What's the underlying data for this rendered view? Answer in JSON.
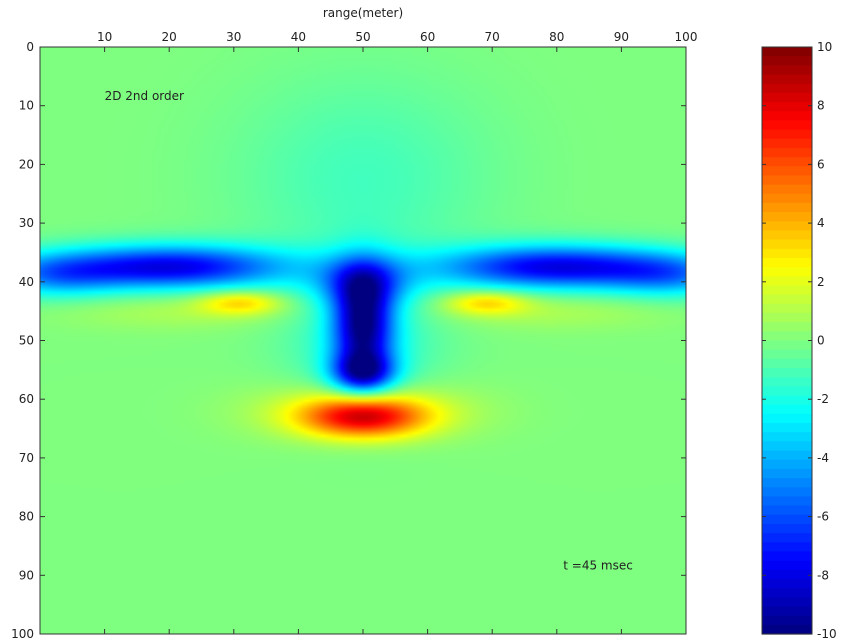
{
  "chart_data": {
    "type": "heatmap",
    "title": "",
    "xlabel": "range(meter)",
    "ylabel": "",
    "xlim": [
      0,
      100
    ],
    "ylim": [
      0,
      100
    ],
    "y_reversed": true,
    "x_axis_position": "top",
    "x_ticks": [
      10,
      20,
      30,
      40,
      50,
      60,
      70,
      80,
      90,
      100
    ],
    "y_ticks": [
      0,
      10,
      20,
      30,
      40,
      50,
      60,
      70,
      80,
      90,
      100
    ],
    "grid": false,
    "colormap": "jet",
    "clim": [
      -10,
      10
    ],
    "colorbar_ticks": [
      10,
      8,
      6,
      4,
      2,
      0,
      -2,
      -4,
      -6,
      -8,
      -10
    ],
    "annotations": [
      {
        "text": "2D 2nd order",
        "x": 10,
        "y": 9
      },
      {
        "text": "t =45 msec",
        "x": 81,
        "y": 89
      }
    ],
    "features": [
      {
        "kind": "gaussian",
        "x": 20,
        "y": 37.5,
        "sx": 13,
        "sy": 2.6,
        "value": -8.0
      },
      {
        "kind": "gaussian",
        "x": 80,
        "y": 37.5,
        "sx": 13,
        "sy": 2.6,
        "value": -8.0
      },
      {
        "kind": "gaussian",
        "x": 2,
        "y": 39,
        "sx": 7,
        "sy": 2.6,
        "value": -3.5
      },
      {
        "kind": "gaussian",
        "x": 98,
        "y": 39,
        "sx": 7,
        "sy": 2.6,
        "value": -3.5
      },
      {
        "kind": "gaussian",
        "x": 50,
        "y": 40,
        "sx": 5,
        "sy": 3,
        "value": -4.0
      },
      {
        "kind": "gaussian",
        "x": 50,
        "y": 47,
        "sx": 3.2,
        "sy": 6,
        "value": -8.5
      },
      {
        "kind": "gaussian",
        "x": 50,
        "y": 55.5,
        "sx": 3.4,
        "sy": 2.4,
        "value": -6.5
      },
      {
        "kind": "gaussian",
        "x": 50,
        "y": 50,
        "sx": 8,
        "sy": 9,
        "value": -2.0
      },
      {
        "kind": "gaussian",
        "x": 50,
        "y": 63,
        "sx": 6.5,
        "sy": 2.4,
        "value": 7.0
      },
      {
        "kind": "gaussian",
        "x": 50,
        "y": 62,
        "sx": 11,
        "sy": 3.4,
        "value": 2.6
      },
      {
        "kind": "gaussian",
        "x": 31,
        "y": 43.5,
        "sx": 4.5,
        "sy": 1.4,
        "value": 3.2
      },
      {
        "kind": "gaussian",
        "x": 69,
        "y": 43.5,
        "sx": 4.5,
        "sy": 1.4,
        "value": 3.2
      },
      {
        "kind": "gaussian",
        "x": 50,
        "y": 22,
        "sx": 14,
        "sy": 12,
        "value": -1.2
      },
      {
        "kind": "gaussian",
        "x": 22,
        "y": 45,
        "sx": 14,
        "sy": 2.2,
        "value": 0.9
      },
      {
        "kind": "gaussian",
        "x": 78,
        "y": 45,
        "sx": 14,
        "sy": 2.2,
        "value": 0.9
      }
    ]
  }
}
